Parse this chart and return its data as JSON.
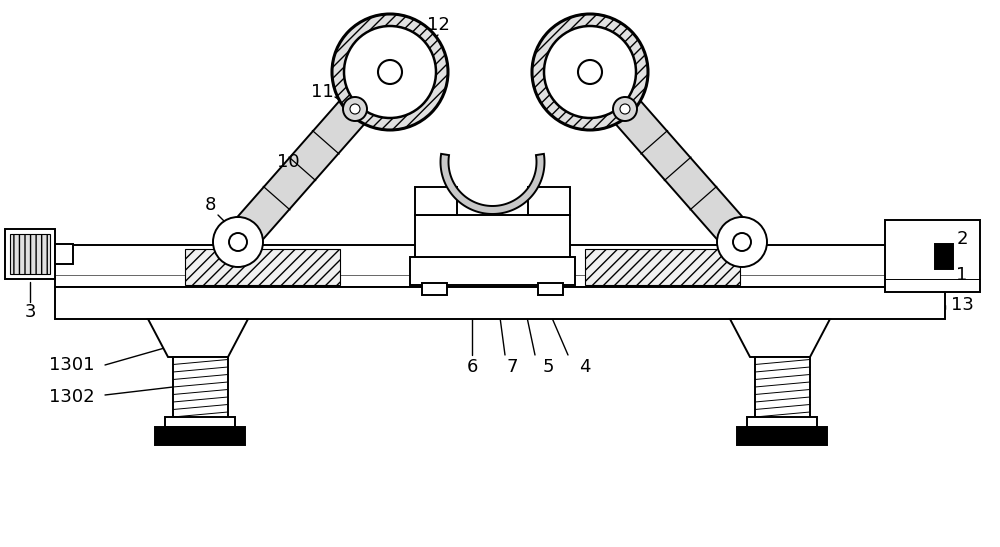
{
  "bg_color": "#ffffff",
  "line_color": "#000000",
  "lw": 1.4,
  "gray_light": "#d8d8d8",
  "gray_med": "#b0b0b0",
  "gray_dark": "#888888",
  "label_fs": 13
}
